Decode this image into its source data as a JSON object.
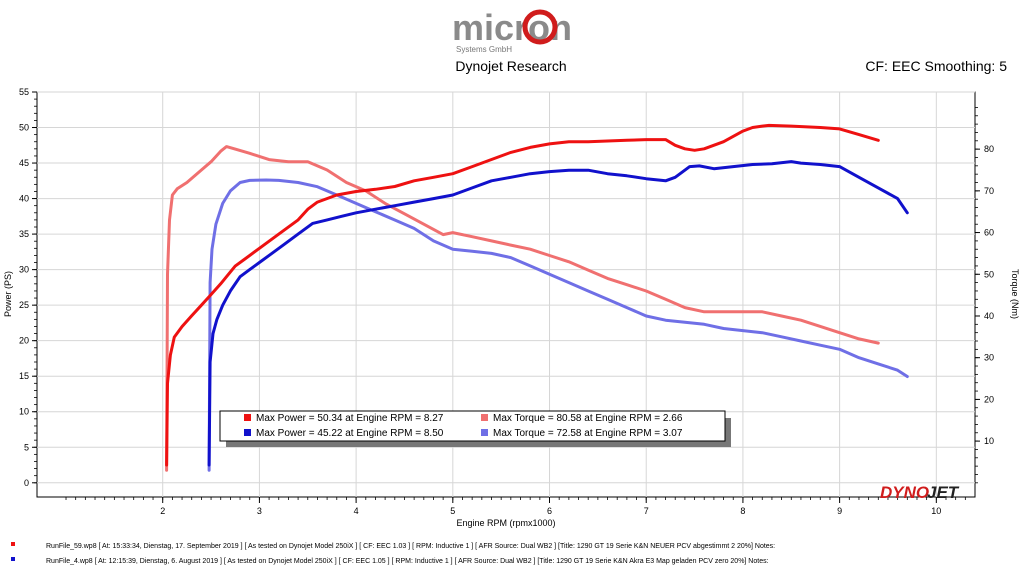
{
  "header": {
    "logo_text": "micron",
    "logo_sub": "Systems GmbH",
    "title": "Dynojet Research",
    "smoothing": "CF: EEC Smoothing: 5",
    "watermark_a": "DYNO",
    "watermark_b": "JET"
  },
  "chart_data": {
    "type": "line",
    "xlabel": "Engine RPM (rpmx1000)",
    "ylabel": "Power (PS)",
    "y2label": "Torque (Nm)",
    "xlim": [
      0.7,
      10.4
    ],
    "ylim": [
      -2,
      55
    ],
    "y2lim": [
      -3.4,
      93.7
    ],
    "x_ticks": [
      "2",
      "3",
      "4",
      "5",
      "6",
      "7",
      "8",
      "9",
      "10"
    ],
    "y_ticks": [
      "0",
      "5",
      "10",
      "15",
      "20",
      "25",
      "30",
      "35",
      "40",
      "45",
      "50",
      "55"
    ],
    "y2_ticks": [
      "10",
      "20",
      "30",
      "40",
      "50",
      "60",
      "70",
      "80"
    ],
    "colors": {
      "run1_power": "#ee1111",
      "run1_torque": "#f07070",
      "run2_power": "#1111cc",
      "run2_torque": "#6f6fe6"
    },
    "series": [
      {
        "name": "Run 1 Power",
        "axis": "left",
        "x": [
          2.04,
          2.05,
          2.08,
          2.12,
          2.2,
          2.3,
          2.4,
          2.5,
          2.6,
          2.66,
          2.75,
          2.85,
          3.0,
          3.2,
          3.4,
          3.5,
          3.6,
          3.8,
          4.0,
          4.2,
          4.4,
          4.6,
          4.8,
          5.0,
          5.2,
          5.4,
          5.6,
          5.8,
          6.0,
          6.2,
          6.4,
          6.6,
          6.8,
          7.0,
          7.2,
          7.3,
          7.4,
          7.5,
          7.6,
          7.8,
          8.0,
          8.1,
          8.2,
          8.27,
          8.5,
          8.8,
          9.0,
          9.2,
          9.4
        ],
        "values": [
          2.5,
          14,
          18,
          20.5,
          22,
          23.5,
          25,
          26.5,
          28,
          29,
          30.5,
          31.5,
          33,
          35,
          37,
          38.5,
          39.5,
          40.5,
          41,
          41.3,
          41.7,
          42.5,
          43,
          43.5,
          44.5,
          45.5,
          46.5,
          47.2,
          47.7,
          48,
          48,
          48.1,
          48.2,
          48.3,
          48.3,
          47.5,
          47,
          46.8,
          47,
          48,
          49.5,
          50,
          50.2,
          50.3,
          50.2,
          50,
          49.8,
          49,
          48.2
        ]
      },
      {
        "name": "Run 1 Torque",
        "axis": "right",
        "x": [
          2.04,
          2.05,
          2.07,
          2.1,
          2.15,
          2.25,
          2.4,
          2.5,
          2.6,
          2.66,
          2.75,
          2.9,
          3.1,
          3.3,
          3.5,
          3.7,
          3.9,
          4.1,
          4.3,
          4.5,
          4.7,
          4.9,
          5.0,
          5.2,
          5.4,
          5.6,
          5.8,
          6.0,
          6.2,
          6.4,
          6.6,
          6.8,
          7.0,
          7.2,
          7.4,
          7.6,
          7.8,
          8.0,
          8.2,
          8.4,
          8.6,
          8.8,
          9.0,
          9.2,
          9.4
        ],
        "values": [
          3,
          50,
          63,
          69,
          70.5,
          72,
          75,
          77,
          79.5,
          80.6,
          80,
          79,
          77.5,
          77,
          77,
          75,
          72,
          70,
          67,
          64.5,
          62,
          59.5,
          60,
          59,
          58,
          57,
          56,
          54.5,
          53,
          51,
          49,
          47.5,
          46,
          44,
          42,
          41,
          41,
          41,
          41,
          40,
          39,
          37.5,
          36,
          34.5,
          33.5
        ]
      },
      {
        "name": "Run 2 Power",
        "axis": "left",
        "x": [
          2.48,
          2.49,
          2.52,
          2.56,
          2.62,
          2.7,
          2.8,
          2.9,
          3.0,
          3.1,
          3.25,
          3.4,
          3.55,
          3.7,
          3.85,
          4.0,
          4.2,
          4.4,
          4.6,
          4.8,
          5.0,
          5.2,
          5.4,
          5.6,
          5.8,
          6.0,
          6.2,
          6.4,
          6.6,
          6.8,
          7.0,
          7.2,
          7.3,
          7.45,
          7.55,
          7.7,
          7.9,
          8.1,
          8.3,
          8.5,
          8.6,
          8.8,
          9.0,
          9.2,
          9.4,
          9.6,
          9.7
        ],
        "values": [
          2.5,
          17,
          21,
          23,
          25,
          27,
          29,
          30,
          31,
          32,
          33.5,
          35,
          36.5,
          37,
          37.5,
          38,
          38.5,
          39,
          39.5,
          40,
          40.5,
          41.5,
          42.5,
          43,
          43.5,
          43.8,
          44,
          44,
          43.5,
          43.2,
          42.8,
          42.5,
          43,
          44.5,
          44.6,
          44.2,
          44.5,
          44.8,
          44.9,
          45.2,
          45,
          44.8,
          44.5,
          43,
          41.5,
          40,
          38
        ]
      },
      {
        "name": "Run 2 Torque",
        "axis": "right",
        "x": [
          2.48,
          2.49,
          2.51,
          2.55,
          2.62,
          2.7,
          2.8,
          2.9,
          3.07,
          3.2,
          3.4,
          3.6,
          3.8,
          4.0,
          4.2,
          4.4,
          4.6,
          4.8,
          5.0,
          5.2,
          5.4,
          5.6,
          5.8,
          6.0,
          6.2,
          6.4,
          6.6,
          6.8,
          7.0,
          7.2,
          7.4,
          7.6,
          7.8,
          8.0,
          8.2,
          8.4,
          8.6,
          8.8,
          9.0,
          9.2,
          9.4,
          9.6,
          9.7
        ],
        "values": [
          3,
          48,
          56,
          62,
          67,
          70,
          72,
          72.5,
          72.6,
          72.5,
          72,
          71,
          69,
          67,
          65,
          63,
          61,
          58,
          56,
          55.5,
          55,
          54,
          52,
          50,
          48,
          46,
          44,
          42,
          40,
          39,
          38.5,
          38,
          37,
          36.5,
          36,
          35,
          34,
          33,
          32,
          30,
          28.5,
          27,
          25.5
        ]
      }
    ],
    "legend": [
      {
        "color": "#ee1111",
        "text": "Max Power = 50.34 at Engine RPM = 8.27"
      },
      {
        "color": "#f07070",
        "text": "Max Torque = 80.58 at Engine RPM = 2.66"
      },
      {
        "color": "#1111cc",
        "text": "Max Power = 45.22 at Engine RPM = 8.50"
      },
      {
        "color": "#6f6fe6",
        "text": "Max Torque = 72.58 at Engine RPM = 3.07"
      }
    ]
  },
  "runs": [
    {
      "color": "#ee1111",
      "text": "RunFile_59.wp8  [  At:  15:33:34,  Dienstag, 17. September 2019  ]  [  As tested on Dynojet Model 250iX  ]  [  CF:  EEC 1.03  ]  [  RPM:  Inductive 1  ]  [  AFR Source:  Dual WB2  ]  [Title:  1290  GT  19  Serie  K&N  NEUER  PCV  abgestimmt  2    20%]  Notes:"
    },
    {
      "color": "#1111cc",
      "text": "RunFile_4.wp8  [  At:  12:15:39,  Dienstag,  6. August 2019  ]  [  As tested on Dynojet Model 250iX  ]  [  CF:  EEC 1.05  ]  [  RPM:  Inductive 1  ]  [  AFR Source:  Dual WB2  ]  [Title:  1290  GT  19  Serie  K&N  Akra  E3  Map  geladen   PCV  zero  20%]  Notes:"
    }
  ]
}
